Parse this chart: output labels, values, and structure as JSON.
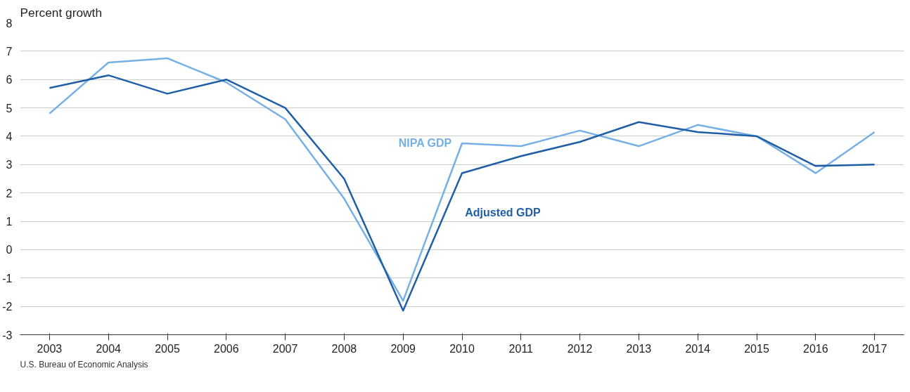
{
  "chart_data": {
    "type": "line",
    "ylabel": "Percent growth",
    "categories": [
      "2003",
      "2004",
      "2005",
      "2006",
      "2007",
      "2008",
      "2009",
      "2010",
      "2011",
      "2012",
      "2013",
      "2014",
      "2015",
      "2016",
      "2017"
    ],
    "series": [
      {
        "name": "NIPA GDP",
        "color": "#74b0e6",
        "values": [
          4.8,
          6.6,
          6.75,
          5.9,
          4.6,
          1.8,
          -1.8,
          3.75,
          3.65,
          4.2,
          3.65,
          4.4,
          4.0,
          2.7,
          4.15
        ]
      },
      {
        "name": "Adjusted GDP",
        "color": "#1f5fa6",
        "values": [
          5.7,
          6.15,
          5.5,
          6.0,
          5.0,
          2.5,
          -2.15,
          2.7,
          3.3,
          3.8,
          4.5,
          4.15,
          4.0,
          2.95,
          3.0
        ]
      }
    ],
    "ylim": [
      -3,
      8
    ],
    "yticks": [
      -3,
      -2,
      -1,
      0,
      1,
      2,
      3,
      4,
      5,
      6,
      7,
      8
    ],
    "grid": "y",
    "legend": false,
    "annotations": [
      "U.S. Bureau of Economic Analysis"
    ]
  }
}
